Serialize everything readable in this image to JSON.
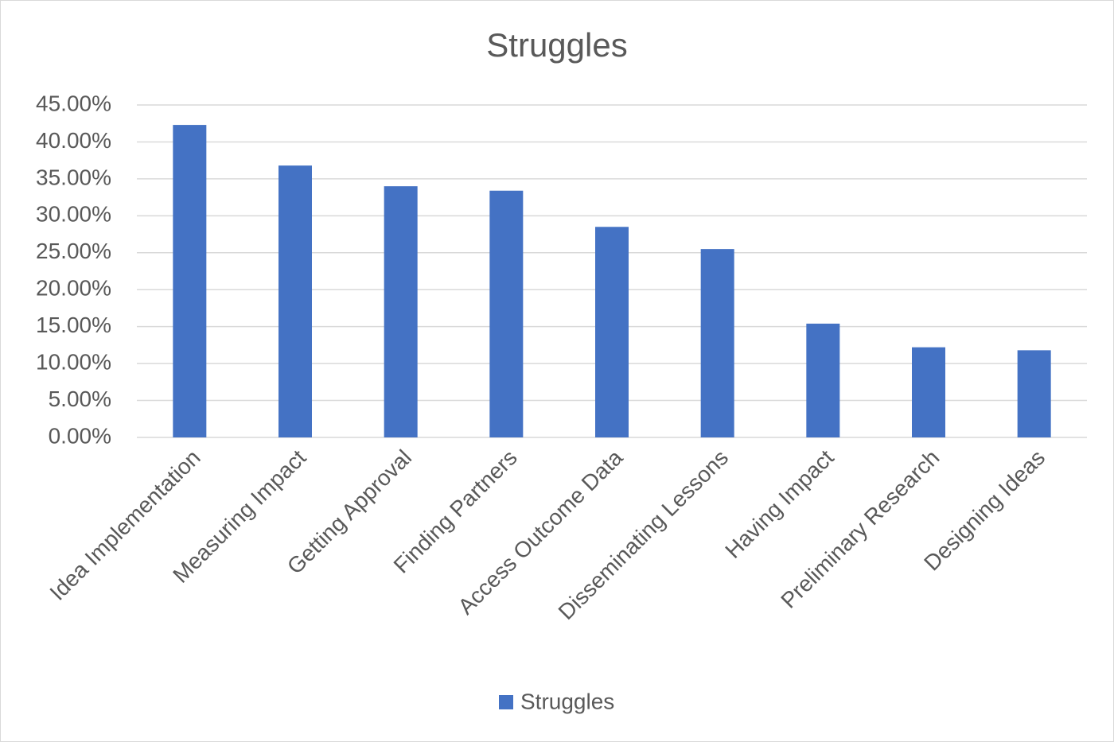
{
  "chart_data": {
    "type": "bar",
    "title": "Struggles",
    "categories": [
      "Idea Implementation",
      "Measuring Impact",
      "Getting Approval",
      "Finding Partners",
      "Access Outcome Data",
      "Disseminating Lessons",
      "Having Impact",
      "Preliminary Research",
      "Designing Ideas"
    ],
    "series": [
      {
        "name": "Struggles",
        "color": "#4472c4",
        "values": [
          42.3,
          36.8,
          34.0,
          33.4,
          28.5,
          25.5,
          15.4,
          12.2,
          11.8
        ]
      }
    ],
    "ylim": [
      0,
      45
    ],
    "yticks": [
      {
        "value": 0,
        "label": "0.00%"
      },
      {
        "value": 5,
        "label": "5.00%"
      },
      {
        "value": 10,
        "label": "10.00%"
      },
      {
        "value": 15,
        "label": "15.00%"
      },
      {
        "value": 20,
        "label": "20.00%"
      },
      {
        "value": 25,
        "label": "25.00%"
      },
      {
        "value": 30,
        "label": "30.00%"
      },
      {
        "value": 35,
        "label": "35.00%"
      },
      {
        "value": 40,
        "label": "40.00%"
      },
      {
        "value": 45,
        "label": "45.00%"
      }
    ],
    "grid": true,
    "legend": "bottom"
  }
}
